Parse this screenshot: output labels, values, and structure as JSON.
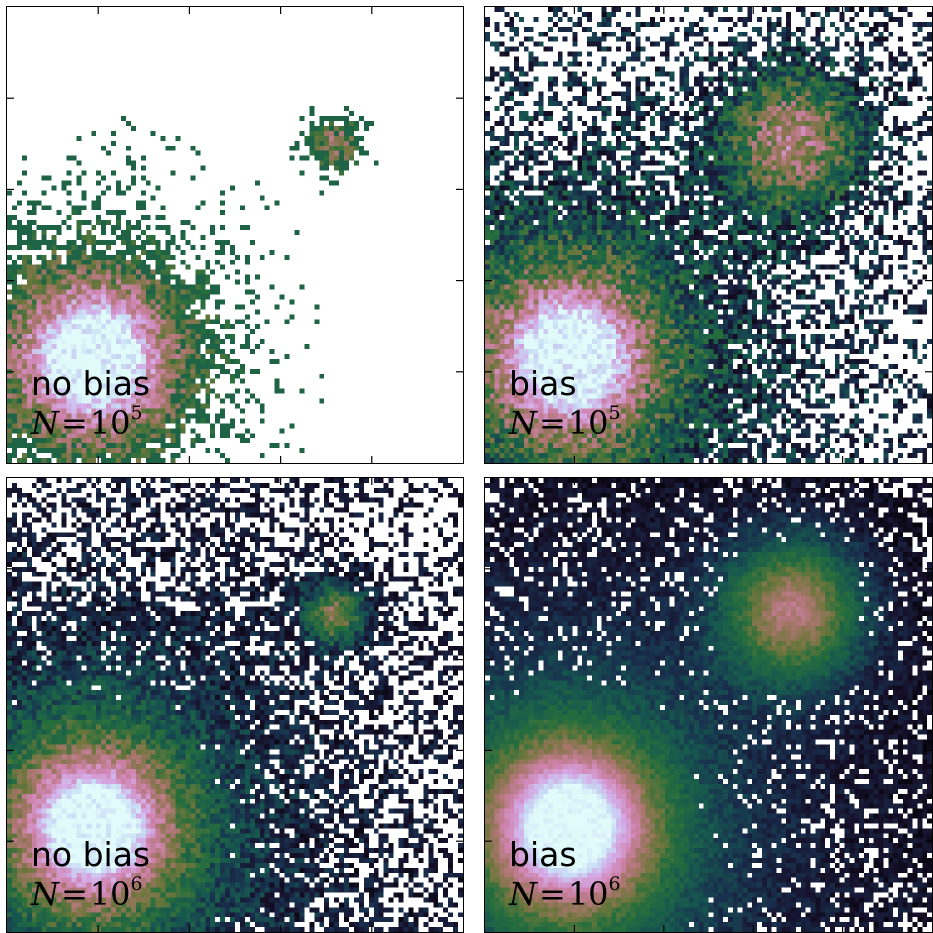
{
  "panels": [
    {
      "id": "top-left",
      "label": "no bias",
      "n_symbol": "N",
      "n_equals": "=",
      "n_base": "10",
      "n_exp": "5",
      "bias": false,
      "samples": "1e5",
      "noise_level": "high"
    },
    {
      "id": "top-right",
      "label": "bias",
      "n_symbol": "N",
      "n_equals": "=",
      "n_base": "10",
      "n_exp": "5",
      "bias": true,
      "samples": "1e5",
      "noise_level": "high"
    },
    {
      "id": "bottom-left",
      "label": "no bias",
      "n_symbol": "N",
      "n_equals": "=",
      "n_base": "10",
      "n_exp": "6",
      "bias": false,
      "samples": "1e6",
      "noise_level": "medium"
    },
    {
      "id": "bottom-right",
      "label": "bias",
      "n_symbol": "N",
      "n_equals": "=",
      "n_base": "10",
      "n_exp": "6",
      "bias": true,
      "samples": "1e6",
      "noise_level": "low"
    }
  ],
  "colormap": "cubehelix-like (black → dark blue → green → rose → light cyan)",
  "colors": {
    "frame": "#000000",
    "empty": "#ffffff"
  }
}
